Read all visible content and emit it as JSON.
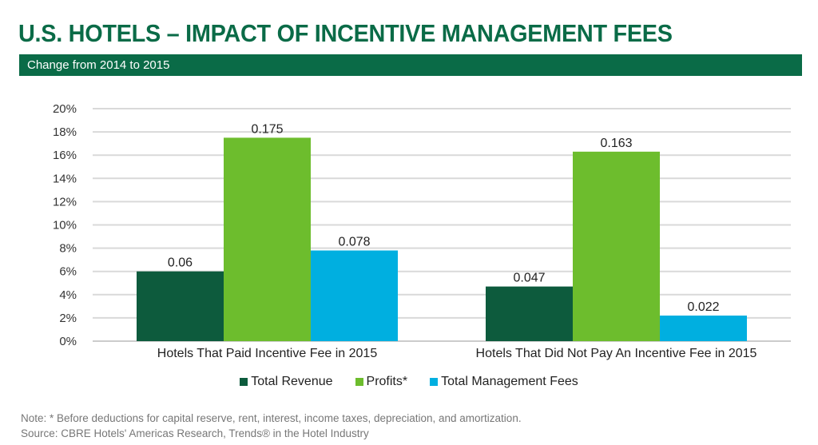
{
  "title": "U.S. HOTELS – IMPACT OF INCENTIVE MANAGEMENT FEES",
  "subtitle": "Change from 2014 to 2015",
  "note": "Note: * Before deductions for capital reserve, rent, interest, income taxes, depreciation, and amortization.",
  "source": "Source: CBRE Hotels' Americas Research, Trends® in the Hotel Industry",
  "colors": {
    "brand": "#0a6b47"
  },
  "chart_data": {
    "type": "bar",
    "categories": [
      "Hotels That Paid Incentive Fee in 2015",
      "Hotels That Did Not Pay An Incentive Fee in 2015"
    ],
    "series": [
      {
        "name": "Total Revenue",
        "values": [
          0.06,
          0.047
        ],
        "labels": [
          "0.06",
          "0.047"
        ],
        "color": "#0d5b3d"
      },
      {
        "name": "Profits*",
        "values": [
          0.175,
          0.163
        ],
        "labels": [
          "0.175",
          "0.163"
        ],
        "color": "#6dbd2d"
      },
      {
        "name": "Total Management Fees",
        "values": [
          0.078,
          0.022
        ],
        "labels": [
          "0.078",
          "0.022"
        ],
        "color": "#00afe0"
      }
    ],
    "ylim": [
      0,
      0.2
    ],
    "yticks": [
      "0%",
      "2%",
      "4%",
      "6%",
      "8%",
      "10%",
      "12%",
      "14%",
      "16%",
      "18%",
      "20%"
    ],
    "grid": true,
    "legend": "bottom"
  }
}
